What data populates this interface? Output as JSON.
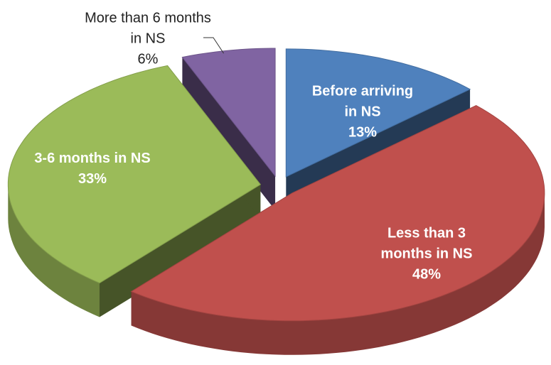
{
  "chart_data": {
    "type": "pie3d",
    "categories": [
      "Before arriving in NS",
      "Less than 3 months in NS",
      "3-6 months in NS",
      "More than 6 months in NS"
    ],
    "values": [
      13,
      48,
      33,
      6
    ],
    "value_labels": [
      "13%",
      "48%",
      "33%",
      "6%"
    ],
    "colors": [
      "#4f81bd",
      "#c0504d",
      "#9bbb59",
      "#8064a2"
    ]
  }
}
